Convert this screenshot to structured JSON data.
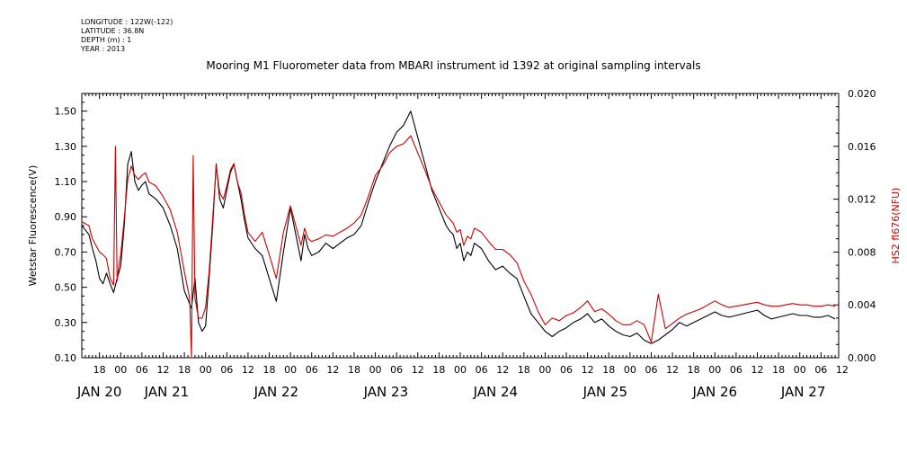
{
  "meta": {
    "longitude": "LONGITUDE : 122W(-122)",
    "latitude": "LATITUDE : 36.8N",
    "depth": "DEPTH (m) : 1",
    "year": "YEAR : 2013"
  },
  "chart_data": {
    "type": "line",
    "title": "Mooring M1 Fluorometer data from MBARI instrument id 1392 at original sampling intervals",
    "ylabel": "Wetstar Fluorescence(V)",
    "y2label": "HS2 fl676(NFU)",
    "ylim": [
      0.1,
      1.6
    ],
    "y2lim": [
      0.0,
      0.02
    ],
    "xlim": [
      -11,
      203
    ],
    "y_ticks": [
      0.1,
      0.3,
      0.5,
      0.7,
      0.9,
      1.1,
      1.3,
      1.5
    ],
    "y_tick_labels": [
      "0.10",
      "0.30",
      "0.50",
      "0.70",
      "0.90",
      "1.10",
      "1.30",
      "1.50"
    ],
    "y2_ticks": [
      0.0,
      0.004,
      0.008,
      0.012,
      0.016,
      0.02
    ],
    "y2_tick_labels": [
      "0.000",
      "0.004",
      "0.008",
      "0.012",
      "0.016",
      "0.020"
    ],
    "x_hour_ticks": [
      -6,
      0,
      6,
      12,
      18,
      24,
      30,
      36,
      42,
      48,
      54,
      60,
      66,
      72,
      78,
      84,
      90,
      96,
      102,
      108,
      114,
      120,
      126,
      132,
      138,
      144,
      150,
      156,
      162,
      168,
      174,
      180,
      186,
      192,
      198
    ],
    "x_hour_labels": [
      "18",
      "00",
      "06",
      "12",
      "18",
      "00",
      "06",
      "12",
      "18",
      "00",
      "06",
      "12",
      "18",
      "00",
      "06",
      "12",
      "18",
      "00",
      "06",
      "12",
      "18",
      "00",
      "06",
      "12",
      "18",
      "00",
      "06",
      "12",
      "18",
      "00",
      "06",
      "12",
      "18",
      "00",
      "06"
    ],
    "x_extra_tick": {
      "x": 204,
      "label": "12"
    },
    "x_day_labels": [
      {
        "label": "JAN 20",
        "x": -6
      },
      {
        "label": "JAN 21",
        "x": 13
      },
      {
        "label": "JAN 22",
        "x": 44
      },
      {
        "label": "JAN 23",
        "x": 75
      },
      {
        "label": "JAN 24",
        "x": 106
      },
      {
        "label": "JAN 25",
        "x": 137
      },
      {
        "label": "JAN 26",
        "x": 168
      },
      {
        "label": "JAN 27",
        "x": 193
      }
    ],
    "series": [
      {
        "axis": "left",
        "color": "#000000",
        "x": [
          -11,
          -9,
          -8,
          -7,
          -6,
          -5,
          -4,
          -3,
          -2,
          -1,
          0,
          1,
          2,
          3,
          4,
          5,
          6,
          7,
          8,
          10,
          12,
          14,
          16,
          18,
          20,
          21,
          22,
          23,
          24,
          25,
          26,
          27,
          28,
          29,
          30,
          31,
          32,
          33,
          34,
          35,
          36,
          38,
          40,
          42,
          44,
          46,
          48,
          50,
          51,
          52,
          53,
          54,
          56,
          58,
          60,
          62,
          64,
          66,
          68,
          70,
          72,
          74,
          76,
          78,
          80,
          82,
          84,
          86,
          88,
          90,
          92,
          93,
          94,
          95,
          96,
          97,
          98,
          99,
          100,
          102,
          104,
          106,
          108,
          110,
          112,
          114,
          116,
          118,
          120,
          122,
          124,
          126,
          128,
          130,
          132,
          134,
          136,
          138,
          140,
          142,
          144,
          146,
          148,
          150,
          152,
          154,
          156,
          158,
          160,
          162,
          164,
          166,
          168,
          170,
          172,
          174,
          176,
          178,
          180,
          182,
          184,
          186,
          188,
          190,
          192,
          194,
          196,
          198,
          200,
          202
        ],
        "values": [
          0.85,
          0.8,
          0.72,
          0.65,
          0.55,
          0.52,
          0.58,
          0.52,
          0.47,
          0.55,
          0.62,
          0.85,
          1.2,
          1.27,
          1.1,
          1.05,
          1.08,
          1.1,
          1.03,
          1.0,
          0.95,
          0.85,
          0.72,
          0.48,
          0.38,
          0.55,
          0.3,
          0.25,
          0.28,
          0.55,
          0.85,
          1.2,
          1.0,
          0.95,
          1.05,
          1.15,
          1.2,
          1.1,
          1.0,
          0.88,
          0.78,
          0.72,
          0.68,
          0.55,
          0.42,
          0.7,
          0.95,
          0.75,
          0.65,
          0.8,
          0.72,
          0.68,
          0.7,
          0.75,
          0.72,
          0.75,
          0.78,
          0.8,
          0.85,
          0.98,
          1.1,
          1.2,
          1.3,
          1.38,
          1.42,
          1.5,
          1.35,
          1.2,
          1.05,
          0.95,
          0.85,
          0.82,
          0.8,
          0.72,
          0.75,
          0.65,
          0.7,
          0.68,
          0.75,
          0.72,
          0.65,
          0.6,
          0.62,
          0.58,
          0.55,
          0.45,
          0.35,
          0.3,
          0.25,
          0.22,
          0.25,
          0.27,
          0.3,
          0.32,
          0.35,
          0.3,
          0.32,
          0.28,
          0.25,
          0.23,
          0.22,
          0.24,
          0.2,
          0.18,
          0.2,
          0.23,
          0.26,
          0.3,
          0.28,
          0.3,
          0.32,
          0.34,
          0.36,
          0.34,
          0.33,
          0.34,
          0.35,
          0.36,
          0.37,
          0.34,
          0.32,
          0.33,
          0.34,
          0.35,
          0.34,
          0.34,
          0.33,
          0.33,
          0.34,
          0.32
        ]
      },
      {
        "axis": "right",
        "color": "#cc0000",
        "x": [
          -11,
          -9,
          -8,
          -7,
          -6,
          -5,
          -4,
          -3,
          -2,
          -1.5,
          -1,
          -0.5,
          0,
          1,
          2,
          3,
          4,
          5,
          6,
          7,
          8,
          10,
          12,
          14,
          16,
          18,
          19.5,
          20,
          20.5,
          21,
          22,
          23,
          24,
          25,
          26,
          27,
          28,
          29,
          30,
          31,
          32,
          33,
          34,
          35,
          36,
          38,
          40,
          42,
          44,
          46,
          48,
          50,
          51,
          52,
          53,
          54,
          56,
          58,
          60,
          62,
          64,
          66,
          68,
          70,
          72,
          74,
          76,
          78,
          80,
          82,
          84,
          86,
          88,
          90,
          92,
          93,
          94,
          95,
          96,
          97,
          98,
          99,
          100,
          102,
          104,
          106,
          108,
          110,
          112,
          114,
          116,
          118,
          120,
          122,
          124,
          126,
          128,
          130,
          132,
          134,
          136,
          138,
          140,
          142,
          144,
          146,
          148,
          150,
          152,
          154,
          156,
          158,
          160,
          162,
          164,
          166,
          168,
          170,
          172,
          174,
          176,
          178,
          180,
          182,
          184,
          186,
          188,
          190,
          192,
          194,
          196,
          198,
          200,
          202
        ],
        "values": [
          0.0103,
          0.01,
          0.009,
          0.0085,
          0.008,
          0.0078,
          0.0075,
          0.006,
          0.0055,
          0.016,
          0.0058,
          0.007,
          0.0078,
          0.0105,
          0.0135,
          0.0145,
          0.0138,
          0.0135,
          0.0138,
          0.014,
          0.0133,
          0.013,
          0.0122,
          0.0112,
          0.0095,
          0.0065,
          0.0045,
          0.0,
          0.0153,
          0.0045,
          0.003,
          0.003,
          0.0038,
          0.0065,
          0.0105,
          0.0145,
          0.0125,
          0.012,
          0.013,
          0.0142,
          0.0147,
          0.0133,
          0.0125,
          0.0108,
          0.0095,
          0.0088,
          0.0095,
          0.0078,
          0.006,
          0.0095,
          0.0115,
          0.0095,
          0.0085,
          0.0098,
          0.009,
          0.0088,
          0.009,
          0.0093,
          0.0092,
          0.0095,
          0.0098,
          0.0102,
          0.0108,
          0.0122,
          0.0138,
          0.0145,
          0.0155,
          0.016,
          0.0162,
          0.0168,
          0.0155,
          0.0142,
          0.0128,
          0.0118,
          0.0108,
          0.0105,
          0.0102,
          0.0095,
          0.0097,
          0.0085,
          0.0092,
          0.009,
          0.0098,
          0.0095,
          0.0088,
          0.0082,
          0.0082,
          0.0078,
          0.0072,
          0.0058,
          0.0048,
          0.0035,
          0.0025,
          0.003,
          0.0028,
          0.0032,
          0.0034,
          0.0038,
          0.0043,
          0.0035,
          0.0037,
          0.0033,
          0.0028,
          0.0025,
          0.0025,
          0.0028,
          0.0025,
          0.0012,
          0.0048,
          0.0022,
          0.0026,
          0.003,
          0.0033,
          0.0035,
          0.0037,
          0.004,
          0.0043,
          0.004,
          0.0038,
          0.0039,
          0.004,
          0.0041,
          0.0042,
          0.004,
          0.0039,
          0.0039,
          0.004,
          0.0041,
          0.004,
          0.004,
          0.0039,
          0.0039,
          0.004,
          0.0039
        ]
      }
    ]
  }
}
